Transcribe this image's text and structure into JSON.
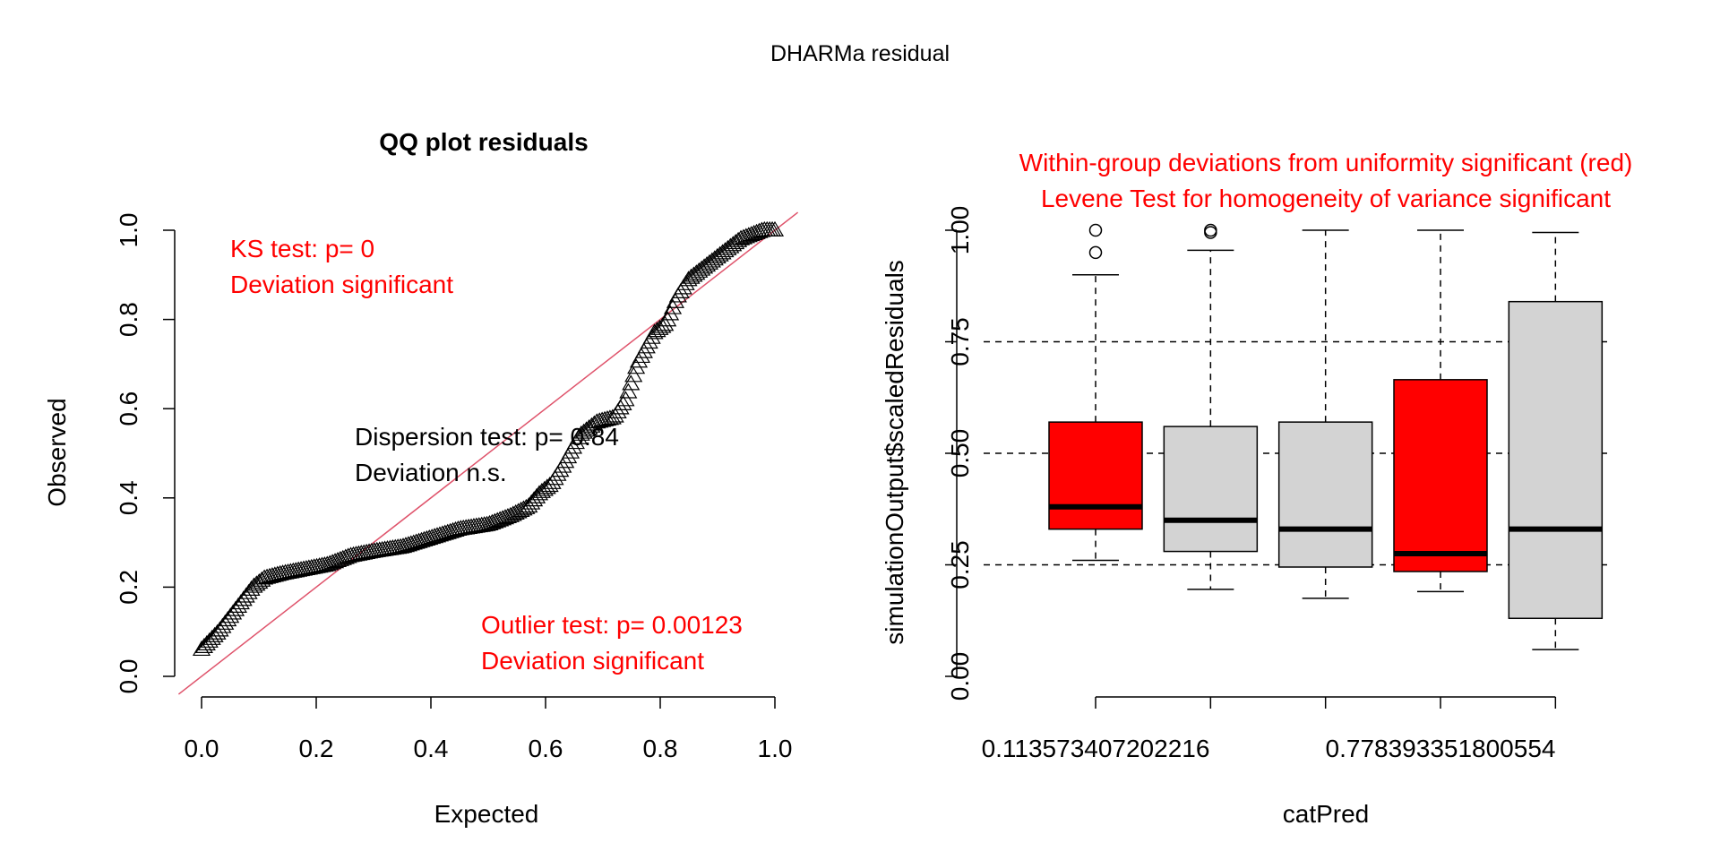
{
  "figure": {
    "title": "DHARMa residual"
  },
  "chart_data": [
    {
      "type": "scatter",
      "title": "QQ plot residuals",
      "xlabel": "Expected",
      "ylabel": "Observed",
      "xlim": [
        0,
        1
      ],
      "ylim": [
        0,
        1
      ],
      "xticks": [
        "0.0",
        "0.2",
        "0.4",
        "0.6",
        "0.8",
        "1.0"
      ],
      "yticks": [
        "0.0",
        "0.2",
        "0.4",
        "0.6",
        "0.8",
        "1.0"
      ],
      "reference_line": {
        "slope": 1,
        "intercept": 0,
        "color": "#DF536B"
      },
      "marker": "open-triangle",
      "qq_curve": [
        [
          0.0,
          0.06
        ],
        [
          0.03,
          0.1
        ],
        [
          0.06,
          0.15
        ],
        [
          0.09,
          0.2
        ],
        [
          0.11,
          0.22
        ],
        [
          0.14,
          0.23
        ],
        [
          0.18,
          0.24
        ],
        [
          0.22,
          0.25
        ],
        [
          0.26,
          0.27
        ],
        [
          0.3,
          0.28
        ],
        [
          0.35,
          0.29
        ],
        [
          0.4,
          0.31
        ],
        [
          0.45,
          0.33
        ],
        [
          0.5,
          0.34
        ],
        [
          0.54,
          0.36
        ],
        [
          0.57,
          0.38
        ],
        [
          0.59,
          0.41
        ],
        [
          0.61,
          0.43
        ],
        [
          0.63,
          0.47
        ],
        [
          0.66,
          0.54
        ],
        [
          0.69,
          0.57
        ],
        [
          0.72,
          0.58
        ],
        [
          0.74,
          0.62
        ],
        [
          0.76,
          0.7
        ],
        [
          0.79,
          0.77
        ],
        [
          0.81,
          0.79
        ],
        [
          0.83,
          0.85
        ],
        [
          0.85,
          0.89
        ],
        [
          0.88,
          0.92
        ],
        [
          0.91,
          0.95
        ],
        [
          0.94,
          0.98
        ],
        [
          0.96,
          0.99
        ],
        [
          0.98,
          1.0
        ],
        [
          1.0,
          1.0
        ]
      ],
      "annotations": {
        "ks_line1": "KS test: p= 0",
        "ks_line2": "Deviation  significant",
        "dispersion_line1": "Dispersion test: p= 0.84",
        "dispersion_line2": "Deviation  n.s.",
        "outlier_line1": "Outlier test: p= 0.00123",
        "outlier_line2": "Deviation  significant",
        "significant_color": "#FF0000",
        "ns_color": "#000000"
      }
    },
    {
      "type": "boxplot",
      "title_line1": "Within-group deviations from uniformity significant (red)",
      "title_line2": "Levene Test for homogeneity of variance significant",
      "title_color": "#FF0000",
      "xlabel": "catPred",
      "ylabel": "simulationOutput$scaledResiduals",
      "ylim": [
        0,
        1
      ],
      "yticks": [
        "0.00",
        "0.25",
        "0.50",
        "0.75",
        "1.00"
      ],
      "xtick_labels_shown": [
        "0.113573407202216",
        "0.778393351800554"
      ],
      "reference_lines": [
        0.25,
        0.5,
        0.75
      ],
      "colors": {
        "significant": "#FF0000",
        "normal": "#D3D3D3"
      },
      "boxes": [
        {
          "whisker_low": 0.26,
          "q1": 0.33,
          "median": 0.38,
          "q3": 0.57,
          "whisker_high": 0.9,
          "outliers": [
            0.95,
            1.0
          ],
          "significant": true
        },
        {
          "whisker_low": 0.195,
          "q1": 0.28,
          "median": 0.35,
          "q3": 0.56,
          "whisker_high": 0.955,
          "outliers": [
            0.995,
            1.0
          ],
          "significant": false
        },
        {
          "whisker_low": 0.175,
          "q1": 0.245,
          "median": 0.33,
          "q3": 0.57,
          "whisker_high": 1.0,
          "outliers": [],
          "significant": false
        },
        {
          "whisker_low": 0.19,
          "q1": 0.235,
          "median": 0.275,
          "q3": 0.665,
          "whisker_high": 1.0,
          "outliers": [],
          "significant": true
        },
        {
          "whisker_low": 0.06,
          "q1": 0.13,
          "median": 0.33,
          "q3": 0.84,
          "whisker_high": 0.995,
          "outliers": [],
          "significant": false
        }
      ]
    }
  ]
}
